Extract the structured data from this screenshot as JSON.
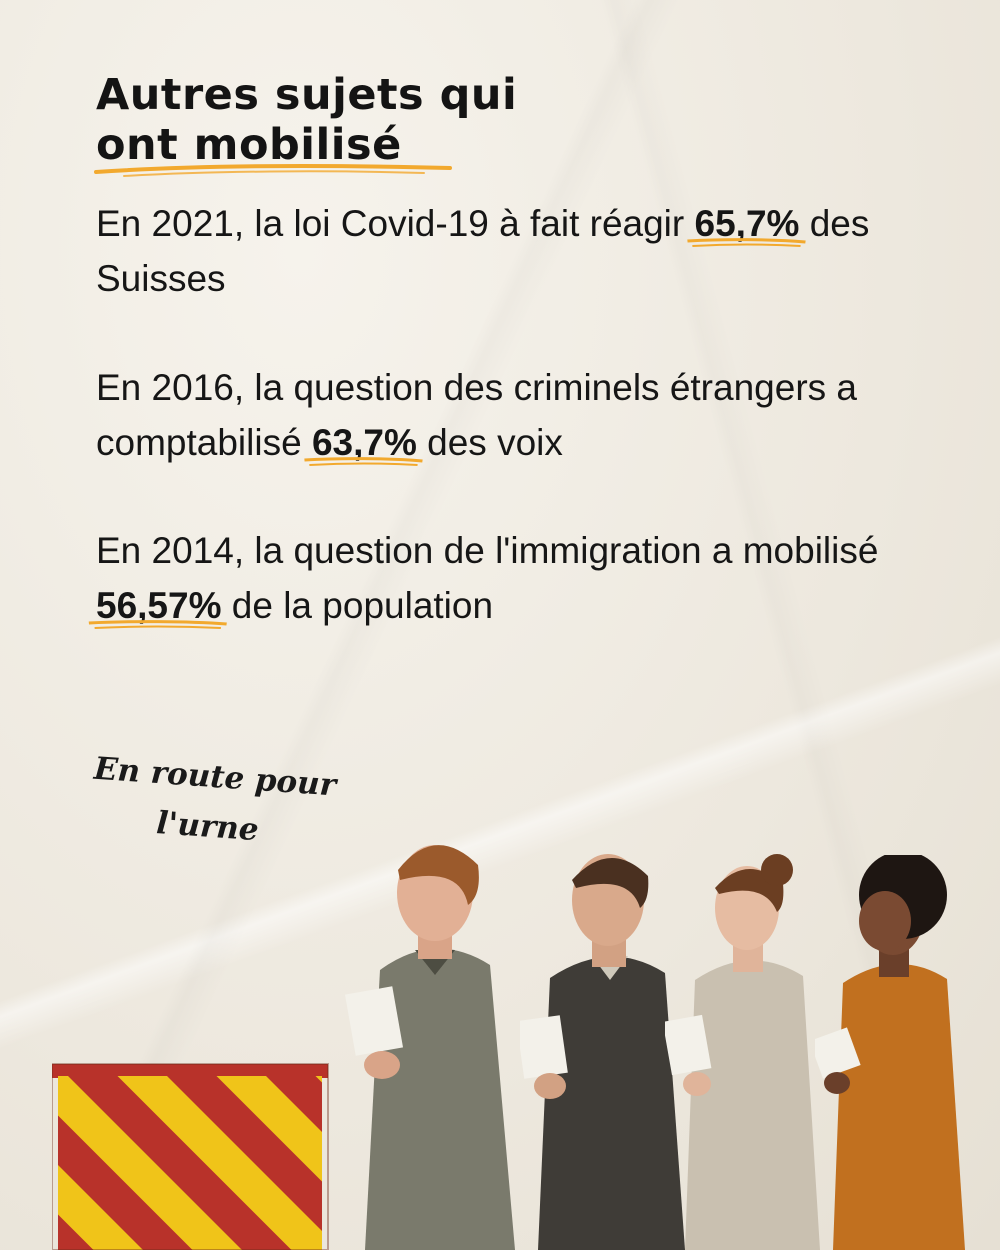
{
  "header": {
    "title_line1": "Autres sujets qui",
    "title_line2": "ont mobilisé"
  },
  "facts": [
    {
      "before": "En 2021, la loi Covid-19 à fait réagir ",
      "value": "65,7%",
      "after": " des Suisses"
    },
    {
      "before": "En 2016, la question des criminels étrangers a comptabilisé ",
      "value": "63,7%",
      "after": " des voix"
    },
    {
      "before": "En 2014, la question de l'immigration a mobilisé ",
      "value": "56,57%",
      "after": " de la population"
    }
  ],
  "caption": {
    "line1": "En route pour",
    "line2": "l'urne"
  },
  "colors": {
    "accent": "#f2a92e",
    "ballot_red": "#b8322a",
    "ballot_yellow": "#f0c419",
    "text": "#141414"
  },
  "illustration": {
    "subject": "people-in-line-icon",
    "ballot_box": "ballot-box-icon"
  }
}
